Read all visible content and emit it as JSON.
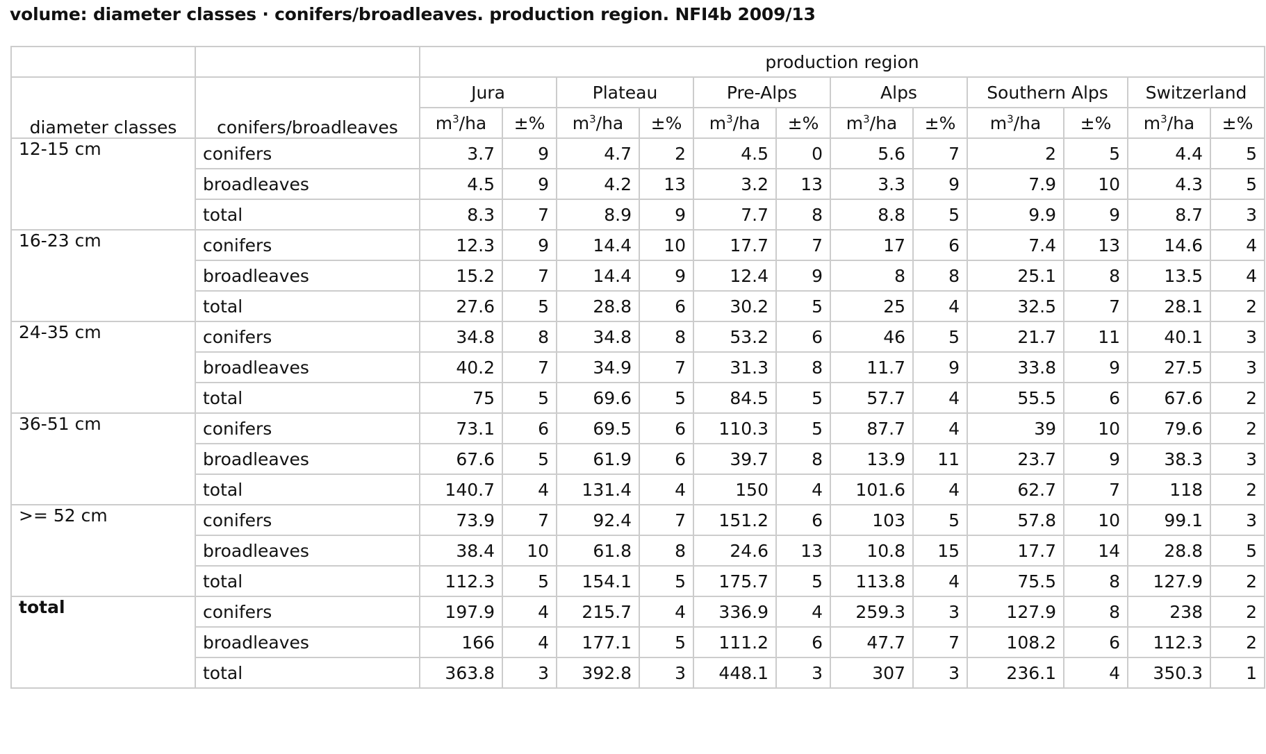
{
  "title": "volume: diameter classes · conifers/broadleaves. production region. NFI4b 2009/13",
  "header": {
    "group_label": "production region",
    "col_dc": "diameter classes",
    "col_cb": "conifers/broadleaves",
    "unit_main": "m",
    "unit_sup": "3",
    "unit_rest": "/ha",
    "unit_err": "±%",
    "regions": [
      "Jura",
      "Plateau",
      "Pre-Alps",
      "Alps",
      "Southern Alps",
      "Switzerland"
    ]
  },
  "groups": [
    {
      "label": "12-15 cm",
      "rows": [
        {
          "type": "conifers",
          "values": [
            "3.7",
            "9",
            "4.7",
            "2",
            "4.5",
            "0",
            "5.6",
            "7",
            "2",
            "5",
            "4.4",
            "5"
          ]
        },
        {
          "type": "broadleaves",
          "values": [
            "4.5",
            "9",
            "4.2",
            "13",
            "3.2",
            "13",
            "3.3",
            "9",
            "7.9",
            "10",
            "4.3",
            "5"
          ]
        },
        {
          "type": "total",
          "values": [
            "8.3",
            "7",
            "8.9",
            "9",
            "7.7",
            "8",
            "8.8",
            "5",
            "9.9",
            "9",
            "8.7",
            "3"
          ]
        }
      ]
    },
    {
      "label": "16-23 cm",
      "rows": [
        {
          "type": "conifers",
          "values": [
            "12.3",
            "9",
            "14.4",
            "10",
            "17.7",
            "7",
            "17",
            "6",
            "7.4",
            "13",
            "14.6",
            "4"
          ]
        },
        {
          "type": "broadleaves",
          "values": [
            "15.2",
            "7",
            "14.4",
            "9",
            "12.4",
            "9",
            "8",
            "8",
            "25.1",
            "8",
            "13.5",
            "4"
          ]
        },
        {
          "type": "total",
          "values": [
            "27.6",
            "5",
            "28.8",
            "6",
            "30.2",
            "5",
            "25",
            "4",
            "32.5",
            "7",
            "28.1",
            "2"
          ]
        }
      ]
    },
    {
      "label": "24-35 cm",
      "rows": [
        {
          "type": "conifers",
          "values": [
            "34.8",
            "8",
            "34.8",
            "8",
            "53.2",
            "6",
            "46",
            "5",
            "21.7",
            "11",
            "40.1",
            "3"
          ]
        },
        {
          "type": "broadleaves",
          "values": [
            "40.2",
            "7",
            "34.9",
            "7",
            "31.3",
            "8",
            "11.7",
            "9",
            "33.8",
            "9",
            "27.5",
            "3"
          ]
        },
        {
          "type": "total",
          "values": [
            "75",
            "5",
            "69.6",
            "5",
            "84.5",
            "5",
            "57.7",
            "4",
            "55.5",
            "6",
            "67.6",
            "2"
          ]
        }
      ]
    },
    {
      "label": "36-51 cm",
      "rows": [
        {
          "type": "conifers",
          "values": [
            "73.1",
            "6",
            "69.5",
            "6",
            "110.3",
            "5",
            "87.7",
            "4",
            "39",
            "10",
            "79.6",
            "2"
          ]
        },
        {
          "type": "broadleaves",
          "values": [
            "67.6",
            "5",
            "61.9",
            "6",
            "39.7",
            "8",
            "13.9",
            "11",
            "23.7",
            "9",
            "38.3",
            "3"
          ]
        },
        {
          "type": "total",
          "values": [
            "140.7",
            "4",
            "131.4",
            "4",
            "150",
            "4",
            "101.6",
            "4",
            "62.7",
            "7",
            "118",
            "2"
          ]
        }
      ]
    },
    {
      "label": ">= 52 cm",
      "rows": [
        {
          "type": "conifers",
          "values": [
            "73.9",
            "7",
            "92.4",
            "7",
            "151.2",
            "6",
            "103",
            "5",
            "57.8",
            "10",
            "99.1",
            "3"
          ]
        },
        {
          "type": "broadleaves",
          "values": [
            "38.4",
            "10",
            "61.8",
            "8",
            "24.6",
            "13",
            "10.8",
            "15",
            "17.7",
            "14",
            "28.8",
            "5"
          ]
        },
        {
          "type": "total",
          "values": [
            "112.3",
            "5",
            "154.1",
            "5",
            "175.7",
            "5",
            "113.8",
            "4",
            "75.5",
            "8",
            "127.9",
            "2"
          ]
        }
      ]
    },
    {
      "label": "total",
      "rows": [
        {
          "type": "conifers",
          "values": [
            "197.9",
            "4",
            "215.7",
            "4",
            "336.9",
            "4",
            "259.3",
            "3",
            "127.9",
            "8",
            "238",
            "2"
          ]
        },
        {
          "type": "broadleaves",
          "values": [
            "166",
            "4",
            "177.1",
            "5",
            "111.2",
            "6",
            "47.7",
            "7",
            "108.2",
            "6",
            "112.3",
            "2"
          ]
        },
        {
          "type": "total",
          "values": [
            "363.8",
            "3",
            "392.8",
            "3",
            "448.1",
            "3",
            "307",
            "3",
            "236.1",
            "4",
            "350.3",
            "1"
          ]
        }
      ]
    }
  ]
}
